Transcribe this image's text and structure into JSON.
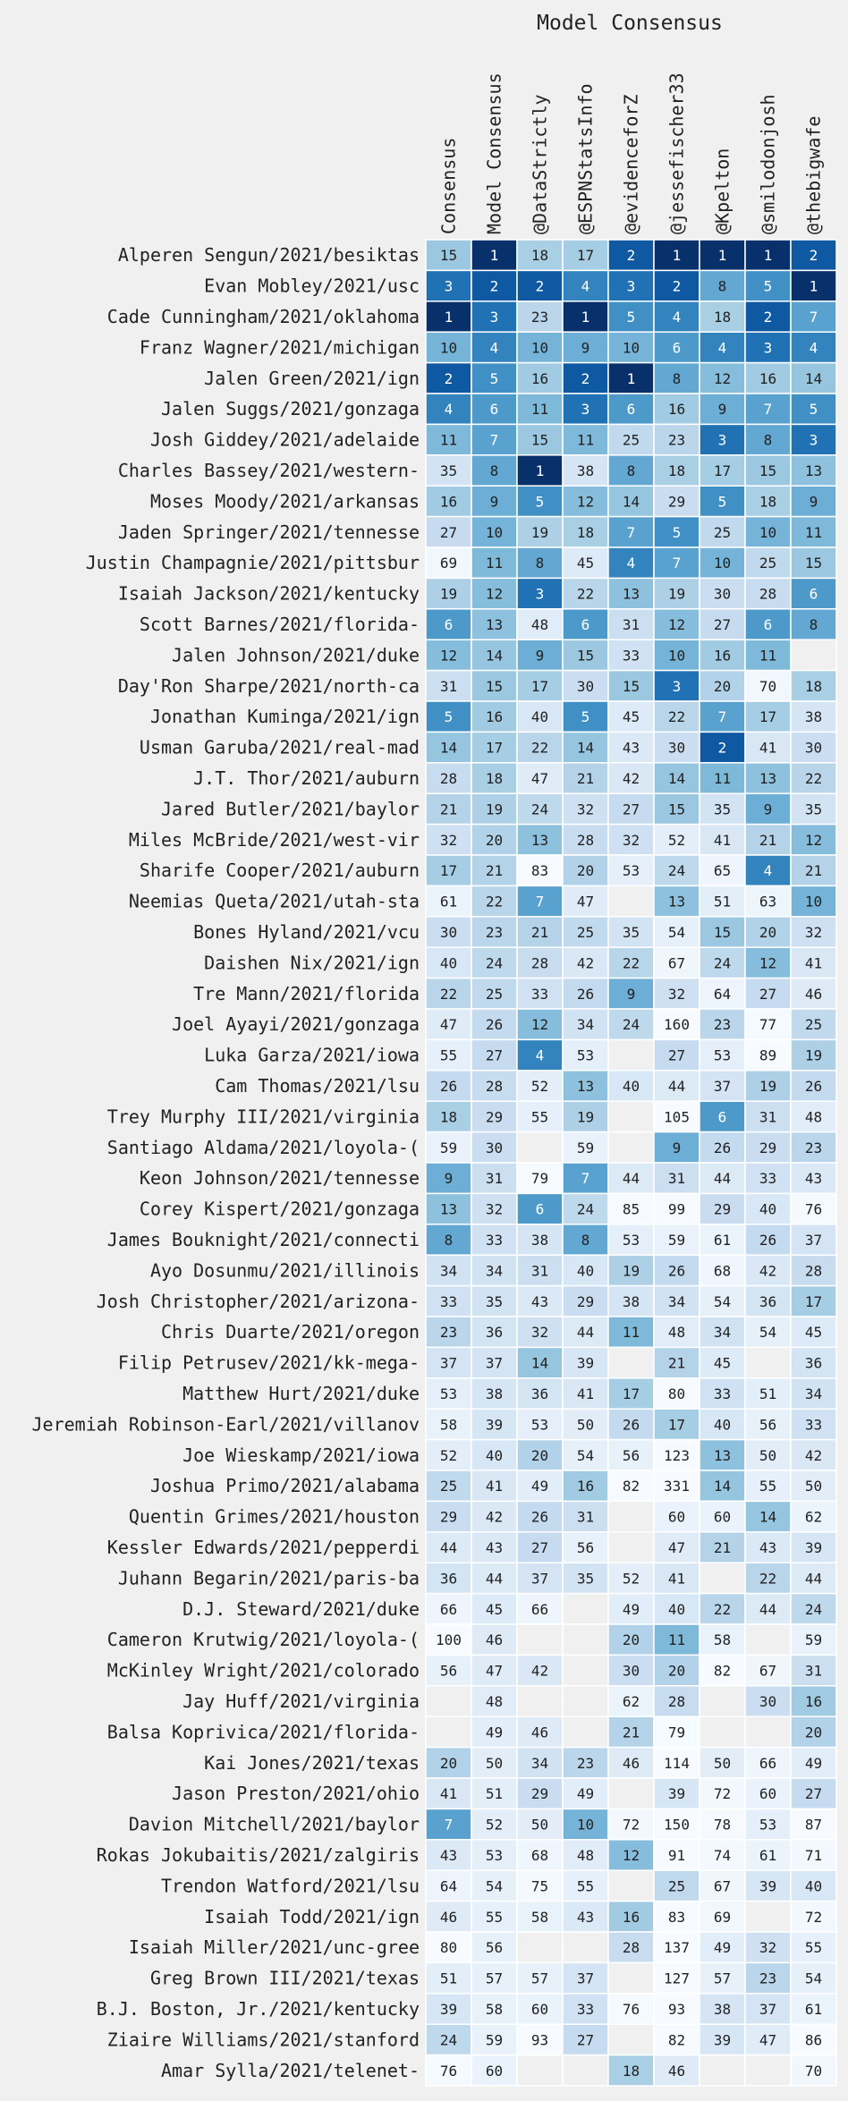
{
  "chart_data": {
    "type": "heatmap",
    "title": "Model Consensus",
    "columns": [
      "Consensus",
      "Model Consensus",
      "@DataStrictly",
      "@ESPNStatsInfo",
      "@evidenceforZ",
      "@jessefischer33",
      "@Kpelton",
      "@smilodonjosh",
      "@thebigwafe"
    ],
    "rows": [
      {
        "label": "Alperen Sengun/2021/besiktas",
        "values": [
          15,
          1,
          18,
          17,
          2,
          1,
          1,
          1,
          2
        ]
      },
      {
        "label": "Evan Mobley/2021/usc",
        "values": [
          3,
          2,
          2,
          4,
          3,
          2,
          8,
          5,
          1
        ]
      },
      {
        "label": "Cade Cunningham/2021/oklahoma",
        "values": [
          1,
          3,
          23,
          1,
          5,
          4,
          18,
          2,
          7
        ]
      },
      {
        "label": "Franz Wagner/2021/michigan",
        "values": [
          10,
          4,
          10,
          9,
          10,
          6,
          4,
          3,
          4
        ]
      },
      {
        "label": "Jalen Green/2021/ign",
        "values": [
          2,
          5,
          16,
          2,
          1,
          8,
          12,
          16,
          14
        ]
      },
      {
        "label": "Jalen Suggs/2021/gonzaga",
        "values": [
          4,
          6,
          11,
          3,
          6,
          16,
          9,
          7,
          5
        ]
      },
      {
        "label": "Josh Giddey/2021/adelaide",
        "values": [
          11,
          7,
          15,
          11,
          25,
          23,
          3,
          8,
          3
        ]
      },
      {
        "label": "Charles Bassey/2021/western-",
        "values": [
          35,
          8,
          1,
          38,
          8,
          18,
          17,
          15,
          13
        ]
      },
      {
        "label": "Moses Moody/2021/arkansas",
        "values": [
          16,
          9,
          5,
          12,
          14,
          29,
          5,
          18,
          9
        ]
      },
      {
        "label": "Jaden Springer/2021/tennesse",
        "values": [
          27,
          10,
          19,
          18,
          7,
          5,
          25,
          10,
          11
        ]
      },
      {
        "label": "Justin Champagnie/2021/pittsbur",
        "values": [
          69,
          11,
          8,
          45,
          4,
          7,
          10,
          25,
          15
        ]
      },
      {
        "label": "Isaiah Jackson/2021/kentucky",
        "values": [
          19,
          12,
          3,
          22,
          13,
          19,
          30,
          28,
          6
        ]
      },
      {
        "label": "Scott Barnes/2021/florida-",
        "values": [
          6,
          13,
          48,
          6,
          31,
          12,
          27,
          6,
          8
        ]
      },
      {
        "label": "Jalen Johnson/2021/duke",
        "values": [
          12,
          14,
          9,
          15,
          33,
          10,
          16,
          11,
          null
        ]
      },
      {
        "label": "Day'Ron Sharpe/2021/north-ca",
        "values": [
          31,
          15,
          17,
          30,
          15,
          3,
          20,
          70,
          18
        ]
      },
      {
        "label": "Jonathan Kuminga/2021/ign",
        "values": [
          5,
          16,
          40,
          5,
          45,
          22,
          7,
          17,
          38
        ]
      },
      {
        "label": "Usman Garuba/2021/real-mad",
        "values": [
          14,
          17,
          22,
          14,
          43,
          30,
          2,
          41,
          30
        ]
      },
      {
        "label": "J.T. Thor/2021/auburn",
        "values": [
          28,
          18,
          47,
          21,
          42,
          14,
          11,
          13,
          22
        ]
      },
      {
        "label": "Jared Butler/2021/baylor",
        "values": [
          21,
          19,
          24,
          32,
          27,
          15,
          35,
          9,
          35
        ]
      },
      {
        "label": "Miles McBride/2021/west-vir",
        "values": [
          32,
          20,
          13,
          28,
          32,
          52,
          41,
          21,
          12
        ]
      },
      {
        "label": "Sharife Cooper/2021/auburn",
        "values": [
          17,
          21,
          83,
          20,
          53,
          24,
          65,
          4,
          21
        ]
      },
      {
        "label": "Neemias Queta/2021/utah-sta",
        "values": [
          61,
          22,
          7,
          47,
          null,
          13,
          51,
          63,
          10
        ]
      },
      {
        "label": "Bones Hyland/2021/vcu",
        "values": [
          30,
          23,
          21,
          25,
          35,
          54,
          15,
          20,
          32
        ]
      },
      {
        "label": "Daishen Nix/2021/ign",
        "values": [
          40,
          24,
          28,
          42,
          22,
          67,
          24,
          12,
          41
        ]
      },
      {
        "label": "Tre Mann/2021/florida",
        "values": [
          22,
          25,
          33,
          26,
          9,
          32,
          64,
          27,
          46
        ]
      },
      {
        "label": "Joel Ayayi/2021/gonzaga",
        "values": [
          47,
          26,
          12,
          34,
          24,
          160,
          23,
          77,
          25
        ]
      },
      {
        "label": "Luka Garza/2021/iowa",
        "values": [
          55,
          27,
          4,
          53,
          null,
          27,
          53,
          89,
          19
        ]
      },
      {
        "label": "Cam Thomas/2021/lsu",
        "values": [
          26,
          28,
          52,
          13,
          40,
          44,
          37,
          19,
          26
        ]
      },
      {
        "label": "Trey Murphy III/2021/virginia",
        "values": [
          18,
          29,
          55,
          19,
          null,
          105,
          6,
          31,
          48
        ]
      },
      {
        "label": "Santiago Aldama/2021/loyola-(",
        "values": [
          59,
          30,
          null,
          59,
          null,
          9,
          26,
          29,
          23
        ]
      },
      {
        "label": "Keon Johnson/2021/tennesse",
        "values": [
          9,
          31,
          79,
          7,
          44,
          31,
          44,
          33,
          43
        ]
      },
      {
        "label": "Corey Kispert/2021/gonzaga",
        "values": [
          13,
          32,
          6,
          24,
          85,
          99,
          29,
          40,
          76
        ]
      },
      {
        "label": "James Bouknight/2021/connecti",
        "values": [
          8,
          33,
          38,
          8,
          53,
          59,
          61,
          26,
          37
        ]
      },
      {
        "label": "Ayo Dosunmu/2021/illinois",
        "values": [
          34,
          34,
          31,
          40,
          19,
          26,
          68,
          42,
          28
        ]
      },
      {
        "label": "Josh Christopher/2021/arizona-",
        "values": [
          33,
          35,
          43,
          29,
          38,
          34,
          54,
          36,
          17
        ]
      },
      {
        "label": "Chris Duarte/2021/oregon",
        "values": [
          23,
          36,
          32,
          44,
          11,
          48,
          34,
          54,
          45
        ]
      },
      {
        "label": "Filip Petrusev/2021/kk-mega-",
        "values": [
          37,
          37,
          14,
          39,
          null,
          21,
          45,
          null,
          36
        ]
      },
      {
        "label": "Matthew Hurt/2021/duke",
        "values": [
          53,
          38,
          36,
          41,
          17,
          80,
          33,
          51,
          34
        ]
      },
      {
        "label": "Jeremiah Robinson-Earl/2021/villanov",
        "values": [
          58,
          39,
          53,
          50,
          26,
          17,
          40,
          56,
          33
        ]
      },
      {
        "label": "Joe Wieskamp/2021/iowa",
        "values": [
          52,
          40,
          20,
          54,
          56,
          123,
          13,
          50,
          42
        ]
      },
      {
        "label": "Joshua Primo/2021/alabama",
        "values": [
          25,
          41,
          49,
          16,
          82,
          331,
          14,
          55,
          50
        ]
      },
      {
        "label": "Quentin Grimes/2021/houston",
        "values": [
          29,
          42,
          26,
          31,
          null,
          60,
          60,
          14,
          62
        ]
      },
      {
        "label": "Kessler Edwards/2021/pepperdi",
        "values": [
          44,
          43,
          27,
          56,
          null,
          47,
          21,
          43,
          39
        ]
      },
      {
        "label": "Juhann Begarin/2021/paris-ba",
        "values": [
          36,
          44,
          37,
          35,
          52,
          41,
          null,
          22,
          44
        ]
      },
      {
        "label": "D.J. Steward/2021/duke",
        "values": [
          66,
          45,
          66,
          null,
          49,
          40,
          22,
          44,
          24
        ]
      },
      {
        "label": "Cameron Krutwig/2021/loyola-(",
        "values": [
          100,
          46,
          null,
          null,
          20,
          11,
          58,
          null,
          59
        ]
      },
      {
        "label": "McKinley Wright/2021/colorado",
        "values": [
          56,
          47,
          42,
          null,
          30,
          20,
          82,
          67,
          31
        ]
      },
      {
        "label": "Jay Huff/2021/virginia",
        "values": [
          null,
          48,
          null,
          null,
          62,
          28,
          null,
          30,
          16
        ]
      },
      {
        "label": "Balsa Koprivica/2021/florida-",
        "values": [
          null,
          49,
          46,
          null,
          21,
          79,
          null,
          null,
          20
        ]
      },
      {
        "label": "Kai Jones/2021/texas",
        "values": [
          20,
          50,
          34,
          23,
          46,
          114,
          50,
          66,
          49
        ]
      },
      {
        "label": "Jason Preston/2021/ohio",
        "values": [
          41,
          51,
          29,
          49,
          null,
          39,
          72,
          60,
          27
        ]
      },
      {
        "label": "Davion Mitchell/2021/baylor",
        "values": [
          7,
          52,
          50,
          10,
          72,
          150,
          78,
          53,
          87
        ]
      },
      {
        "label": "Rokas Jokubaitis/2021/zalgiris",
        "values": [
          43,
          53,
          68,
          48,
          12,
          91,
          74,
          61,
          71
        ]
      },
      {
        "label": "Trendon Watford/2021/lsu",
        "values": [
          64,
          54,
          75,
          55,
          null,
          25,
          67,
          39,
          40
        ]
      },
      {
        "label": "Isaiah Todd/2021/ign",
        "values": [
          46,
          55,
          58,
          43,
          16,
          83,
          69,
          null,
          72
        ]
      },
      {
        "label": "Isaiah Miller/2021/unc-gree",
        "values": [
          80,
          56,
          null,
          null,
          28,
          137,
          49,
          32,
          55
        ]
      },
      {
        "label": "Greg Brown III/2021/texas",
        "values": [
          51,
          57,
          57,
          37,
          null,
          127,
          57,
          23,
          54
        ]
      },
      {
        "label": "B.J. Boston, Jr./2021/kentucky",
        "values": [
          39,
          58,
          60,
          33,
          76,
          93,
          38,
          37,
          61
        ]
      },
      {
        "label": "Ziaire Williams/2021/stanford",
        "values": [
          24,
          59,
          93,
          27,
          null,
          82,
          39,
          47,
          86
        ]
      },
      {
        "label": "Amar Sylla/2021/telenet-",
        "values": [
          76,
          60,
          null,
          null,
          18,
          46,
          null,
          null,
          70
        ]
      }
    ],
    "colors": {
      "background": "#f0f0f0",
      "empty_cell": "#f0f0f0",
      "cell_border": "#ffffff",
      "scale_light": "#f7fbff",
      "scale_dark": "#08306b",
      "text_dark": "#222222",
      "text_light": "#ffffff"
    }
  }
}
